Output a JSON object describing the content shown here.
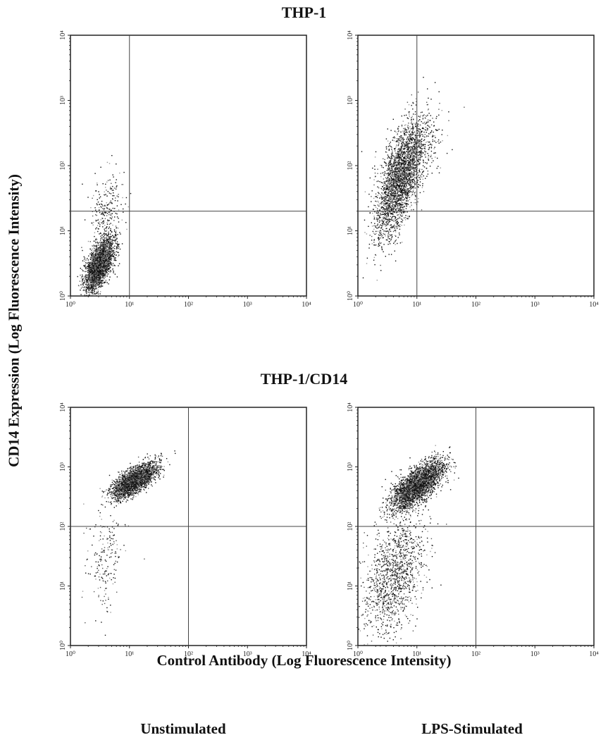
{
  "labels": {
    "panel_group_top": "THP-1",
    "panel_group_bottom": "THP-1/CD14",
    "y_axis": "CD14 Expression (Log Fluorescence Intensity)",
    "x_axis": "Control Antibody (Log Fluorescence Intensity)",
    "condition_left": "Unstimulated",
    "condition_right": "LPS-Stimulated"
  },
  "chart_data": [
    {
      "type": "scatter",
      "group": "THP-1",
      "condition": "Unstimulated",
      "x_scale": "log",
      "y_scale": "log",
      "xlim": [
        1,
        10000
      ],
      "ylim": [
        1,
        10000
      ],
      "x_ticks": [
        "10⁰",
        "10¹",
        "10²",
        "10³",
        "10⁴"
      ],
      "y_ticks": [
        "10⁰",
        "10¹",
        "10²",
        "10³",
        "10⁴"
      ],
      "quadrant_gate": {
        "x": 10,
        "y": 20
      },
      "populations": [
        {
          "x_center": 3,
          "y_center": 3,
          "x_spread": 0.12,
          "y_spread": 0.2,
          "corr": 0.6,
          "count": 2600
        },
        {
          "x_center": 4,
          "y_center": 15,
          "x_spread": 0.15,
          "y_spread": 0.35,
          "corr": 0.3,
          "count": 300
        }
      ]
    },
    {
      "type": "scatter",
      "group": "THP-1",
      "condition": "LPS-Stimulated",
      "x_scale": "log",
      "y_scale": "log",
      "xlim": [
        1,
        10000
      ],
      "ylim": [
        1,
        10000
      ],
      "x_ticks": [
        "10⁰",
        "10¹",
        "10²",
        "10³",
        "10⁴"
      ],
      "y_ticks": [
        "10⁰",
        "10¹",
        "10²",
        "10³",
        "10⁴"
      ],
      "quadrant_gate": {
        "x": 10,
        "y": 20
      },
      "populations": [
        {
          "x_center": 5,
          "y_center": 60,
          "x_spread": 0.2,
          "y_spread": 0.45,
          "corr": 0.65,
          "count": 2600
        },
        {
          "x_center": 8,
          "y_center": 150,
          "x_spread": 0.25,
          "y_spread": 0.35,
          "corr": 0.5,
          "count": 500
        }
      ]
    },
    {
      "type": "scatter",
      "group": "THP-1/CD14",
      "condition": "Unstimulated",
      "x_scale": "log",
      "y_scale": "log",
      "xlim": [
        1,
        10000
      ],
      "ylim": [
        1,
        10000
      ],
      "x_ticks": [
        "10⁰",
        "10¹",
        "10²",
        "10³",
        "10⁴"
      ],
      "y_ticks": [
        "10⁰",
        "10¹",
        "10²",
        "10³",
        "10⁴"
      ],
      "quadrant_gate": {
        "x": 100,
        "y": 100
      },
      "populations": [
        {
          "x_center": 12,
          "y_center": 600,
          "x_spread": 0.18,
          "y_spread": 0.14,
          "corr": 0.7,
          "count": 2800
        },
        {
          "x_center": 4,
          "y_center": 30,
          "x_spread": 0.15,
          "y_spread": 0.45,
          "corr": 0.2,
          "count": 200
        }
      ]
    },
    {
      "type": "scatter",
      "group": "THP-1/CD14",
      "condition": "LPS-Stimulated",
      "x_scale": "log",
      "y_scale": "log",
      "xlim": [
        1,
        10000
      ],
      "ylim": [
        1,
        10000
      ],
      "x_ticks": [
        "10⁰",
        "10¹",
        "10²",
        "10³",
        "10⁴"
      ],
      "y_ticks": [
        "10⁰",
        "10¹",
        "10²",
        "10³",
        "10⁴"
      ],
      "quadrant_gate": {
        "x": 100,
        "y": 100
      },
      "populations": [
        {
          "x_center": 10,
          "y_center": 500,
          "x_spread": 0.22,
          "y_spread": 0.2,
          "corr": 0.7,
          "count": 3000
        },
        {
          "x_center": 4,
          "y_center": 15,
          "x_spread": 0.25,
          "y_spread": 0.5,
          "corr": 0.4,
          "count": 1300
        }
      ]
    }
  ]
}
